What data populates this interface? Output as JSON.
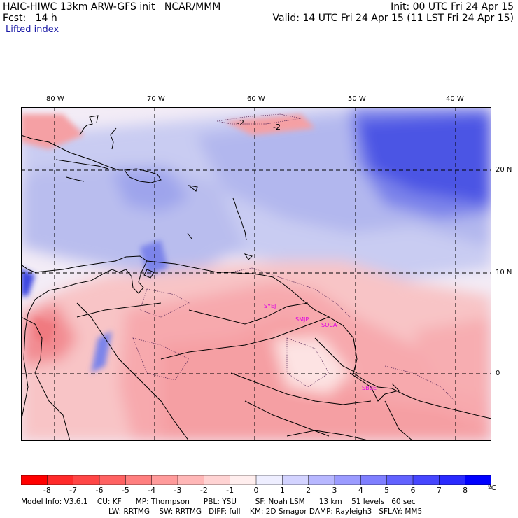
{
  "header": {
    "line1_left": "HAIC-HIWC 13km ARW-GFS init   NCAR/MMM",
    "line1_right": "Init: 00 UTC Fri 24 Apr 15",
    "line2_left": "Fcst:   14 h",
    "line2_right": "Valid: 14 UTC Fri 24 Apr 15 (11 LST Fri 24 Apr 15)",
    "field": "Lifted index"
  },
  "lon_labels": [
    "80 W",
    "70 W",
    "60 W",
    "50 W",
    "40 W"
  ],
  "lat_labels": [
    "20 N",
    "10 N",
    "0"
  ],
  "contour_labels": [
    "-2",
    "-2"
  ],
  "stations": [
    "SYEJ",
    "SMJP",
    "SOCA",
    "SBBE"
  ],
  "colorbar": {
    "labels": [
      "-8",
      "-7",
      "-6",
      "-5",
      "-4",
      "-3",
      "-2",
      "-1",
      "0",
      "1",
      "2",
      "3",
      "4",
      "5",
      "6",
      "7",
      "8"
    ],
    "unit": "ºC",
    "colors": [
      "#ff0000",
      "#ff2a2a",
      "#ff4646",
      "#ff6262",
      "#ff7f7f",
      "#ff9b9b",
      "#ffb7b7",
      "#ffd3d3",
      "#ffeeee",
      "#eeeeff",
      "#d3d3ff",
      "#b7b7ff",
      "#9b9bff",
      "#7f7fff",
      "#6262ff",
      "#4646ff",
      "#2a2aff",
      "#0000ff"
    ]
  },
  "footer": {
    "line1": "Model Info: V3.6.1    CU: KF      MP: Thompson      PBL: YSU        SF: Noah LSM      13 km    51 levels   60 sec",
    "line2": "LW: RRTMG    SW: RRTMG   DIFF: full    KM: 2D Smagor DAMP: Rayleigh3   SFLAY: MM5"
  }
}
